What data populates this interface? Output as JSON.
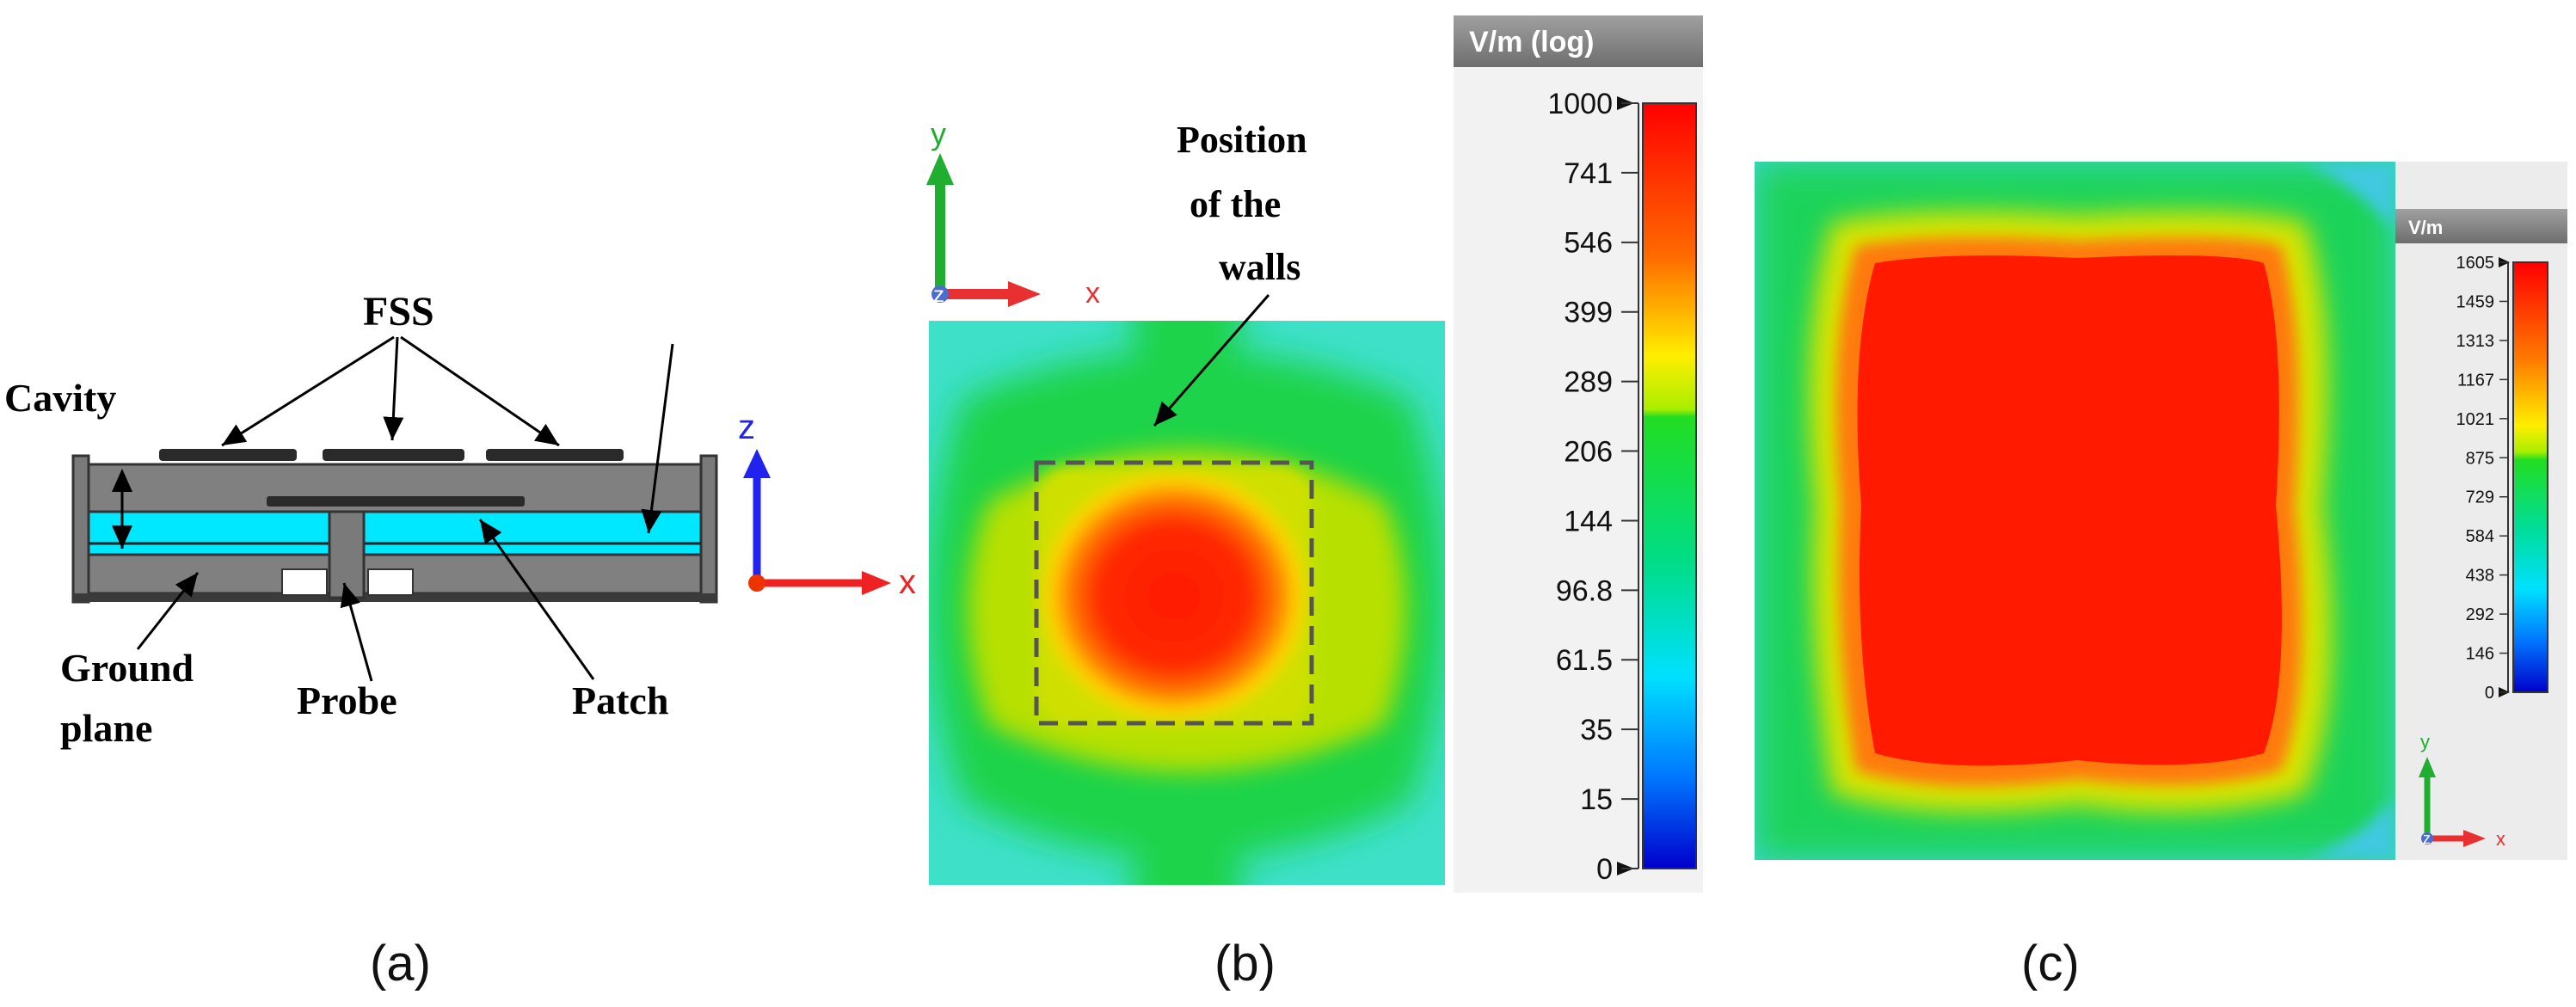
{
  "panel_a": {
    "labels": {
      "fss": "FSS",
      "cavity": "Cavity",
      "ground": "Ground",
      "plane": "plane",
      "probe": "Probe",
      "patch": "Patch"
    },
    "axis": {
      "z": "z",
      "x": "x"
    },
    "colors": {
      "substrate": "#00e8ff",
      "body": "#808080"
    }
  },
  "panel_b": {
    "annotation_line1": "Position",
    "annotation_line2": "of the",
    "annotation_line3": "walls",
    "axis": {
      "y": "y",
      "z": "z",
      "x": "x"
    },
    "legend": {
      "unit": "V/m (log)",
      "ticks": [
        "1000",
        "741",
        "546",
        "399",
        "289",
        "206",
        "144",
        "96.8",
        "61.5",
        "35",
        "15",
        "0"
      ]
    }
  },
  "panel_c": {
    "axis": {
      "y": "y",
      "z": "z",
      "x": "x"
    },
    "legend": {
      "unit": "V/m",
      "ticks": [
        "1605",
        "1459",
        "1313",
        "1167",
        "1021",
        "875",
        "729",
        "584",
        "438",
        "292",
        "146",
        "0"
      ]
    }
  },
  "captions": {
    "a": "(a)",
    "b": "(b)",
    "c": "(c)"
  }
}
